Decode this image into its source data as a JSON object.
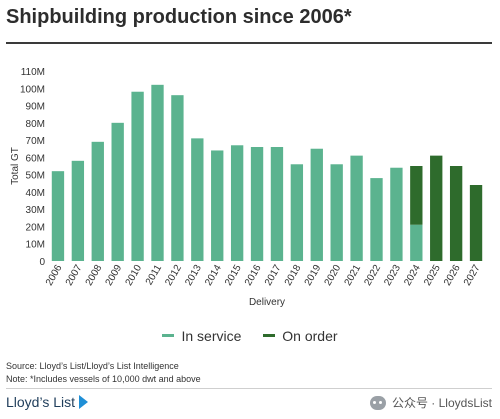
{
  "title": "Shipbuilding production since 2006*",
  "chart_data": {
    "type": "bar",
    "stacked": true,
    "categories": [
      "2006",
      "2007",
      "2008",
      "2009",
      "2010",
      "2011",
      "2012",
      "2013",
      "2014",
      "2015",
      "2016",
      "2017",
      "2018",
      "2019",
      "2020",
      "2021",
      "2022",
      "2023",
      "2024",
      "2025",
      "2026",
      "2027"
    ],
    "series": [
      {
        "name": "In service",
        "color": "#5bb38f",
        "values": [
          52,
          58,
          69,
          80,
          98,
          102,
          96,
          71,
          64,
          67,
          66,
          66,
          56,
          65,
          56,
          61,
          48,
          54,
          21,
          0,
          0,
          0
        ]
      },
      {
        "name": "On order",
        "color": "#2e6b2c",
        "values": [
          0,
          0,
          0,
          0,
          0,
          0,
          0,
          0,
          0,
          0,
          0,
          0,
          0,
          0,
          0,
          0,
          0,
          0,
          34,
          61,
          55,
          44
        ]
      }
    ],
    "ylim": [
      0,
      110
    ],
    "yticks": [
      0,
      10,
      20,
      30,
      40,
      50,
      60,
      70,
      80,
      90,
      100,
      110
    ],
    "ytick_labels": [
      "0",
      "10M",
      "20M",
      "30M",
      "40M",
      "50M",
      "60M",
      "70M",
      "80M",
      "90M",
      "100M",
      "110M"
    ],
    "xlabel": "Delivery",
    "ylabel": "Total GT",
    "legend_position": "bottom"
  },
  "footnotes": {
    "source": "Source: Lloyd’s List/Lloyd’s List Intelligence",
    "note": "Note: *Includes vessels of 10,000 dwt and above"
  },
  "brand": "Lloyd’s List",
  "watermark": "公众号 · LloydsList"
}
